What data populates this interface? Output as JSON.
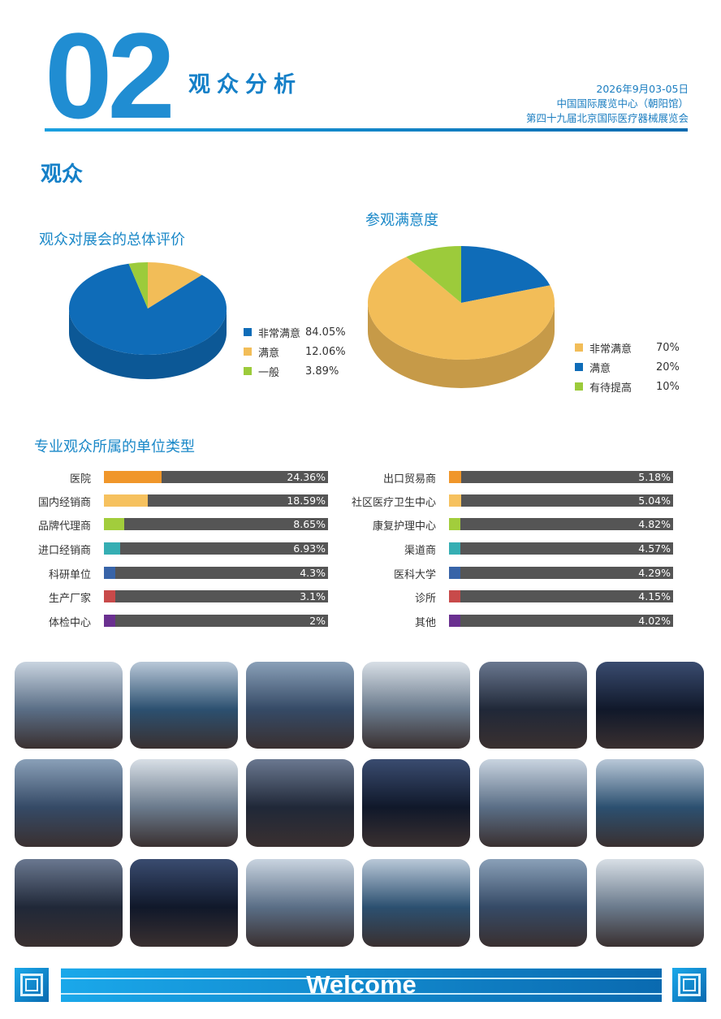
{
  "header": {
    "number": "02",
    "section": "观众分析",
    "date": "2026年9月03-05日",
    "venue": "中国国际展览中心（朝阳馆）",
    "event": "第四十九届北京国际医疗器械展览会"
  },
  "page_title": "观众",
  "colors": {
    "accent": "#1580c8",
    "blue": "#0f6cb8",
    "yellow": "#f2bd58",
    "green": "#9ccb3b",
    "bar_bg": "#555555"
  },
  "chart_data": [
    {
      "type": "pie",
      "title": "观众对展会的总体评价",
      "slices": [
        {
          "label": "非常满意",
          "value": 84.05,
          "display": "84.05%",
          "color": "#0f6cb8"
        },
        {
          "label": "满意",
          "value": 12.06,
          "display": "12.06%",
          "color": "#f2bd58"
        },
        {
          "label": "一般",
          "value": 3.89,
          "display": "3.89%",
          "color": "#9ccb3b"
        }
      ],
      "legend": "right"
    },
    {
      "type": "pie",
      "title": "参观满意度",
      "slices": [
        {
          "label": "非常满意",
          "value": 70,
          "display": "70%",
          "color": "#f2bd58"
        },
        {
          "label": "满意",
          "value": 20,
          "display": "20%",
          "color": "#0f6cb8"
        },
        {
          "label": "有待提高",
          "value": 10,
          "display": "10%",
          "color": "#9ccb3b"
        }
      ],
      "legend": "right"
    },
    {
      "type": "bar",
      "title": "专业观众所属的单位类型",
      "left": [
        {
          "label": "医院",
          "value": 24.36,
          "display": "24.36%",
          "color": "#f0962a"
        },
        {
          "label": "国内经销商",
          "value": 18.59,
          "display": "18.59%",
          "color": "#f6c15e"
        },
        {
          "label": "品牌代理商",
          "value": 8.65,
          "display": "8.65%",
          "color": "#a2cd3c"
        },
        {
          "label": "进口经销商",
          "value": 6.93,
          "display": "6.93%",
          "color": "#35aeb3"
        },
        {
          "label": "科研单位",
          "value": 4.3,
          "display": "4.3%",
          "color": "#3864a8"
        },
        {
          "label": "生产厂家",
          "value": 3.1,
          "display": "3.1%",
          "color": "#c84a4a"
        },
        {
          "label": "体检中心",
          "value": 2,
          "display": "2%",
          "color": "#6a3090"
        }
      ],
      "right": [
        {
          "label": "出口贸易商",
          "value": 5.18,
          "display": "5.18%",
          "color": "#f0962a"
        },
        {
          "label": "社区医疗卫生中心",
          "value": 5.04,
          "display": "5.04%",
          "color": "#f6c15e"
        },
        {
          "label": "康复护理中心",
          "value": 4.82,
          "display": "4.82%",
          "color": "#a2cd3c"
        },
        {
          "label": "渠道商",
          "value": 4.57,
          "display": "4.57%",
          "color": "#35aeb3"
        },
        {
          "label": "医科大学",
          "value": 4.29,
          "display": "4.29%",
          "color": "#3864a8"
        },
        {
          "label": "诊所",
          "value": 4.15,
          "display": "4.15%",
          "color": "#c84a4a"
        },
        {
          "label": "其他",
          "value": 4.02,
          "display": "4.02%",
          "color": "#6a3090"
        }
      ]
    }
  ],
  "photos": 18,
  "footer": {
    "welcome": "Welcome"
  }
}
